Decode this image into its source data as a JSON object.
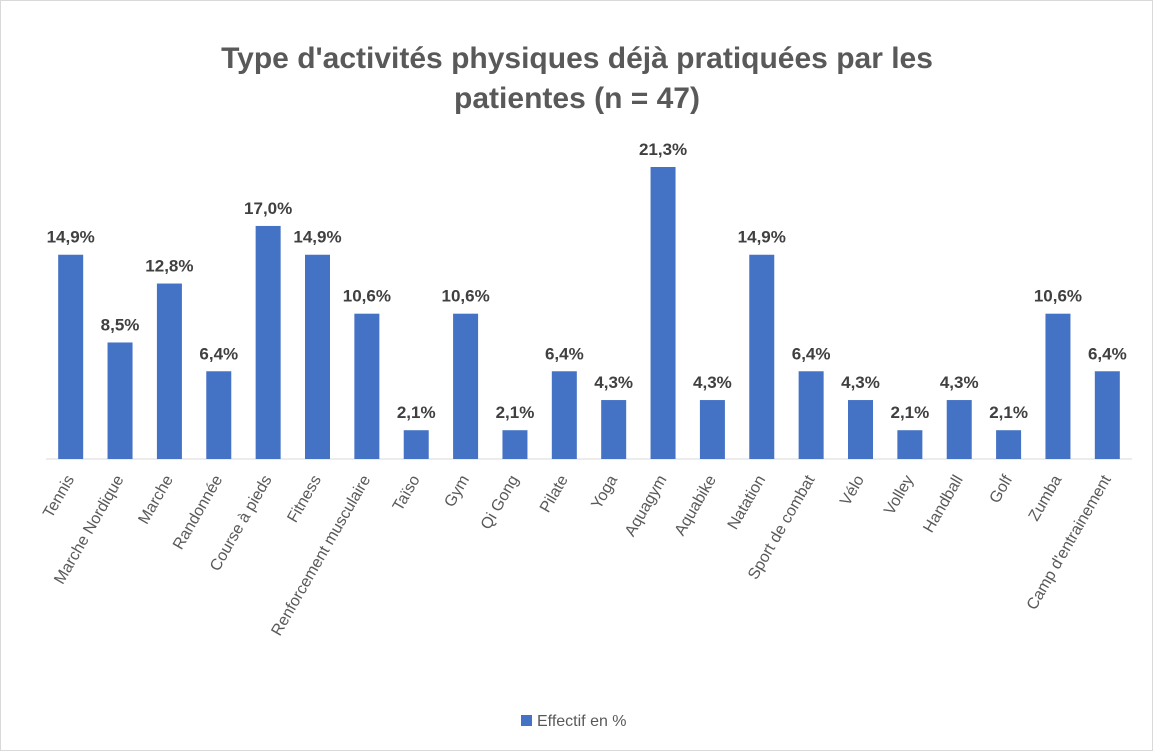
{
  "chart_data": {
    "type": "bar",
    "title": "Type d'activités physiques déjà pratiquées par les patientes (n = 47)",
    "categories": [
      "Tennis",
      "Marche Nordique",
      "Marche",
      "Randonnée",
      "Course à pieds",
      "Fitness",
      "Renforcement musculaire",
      "Taïso",
      "Gym",
      "Qi Gong",
      "Pilate",
      "Yoga",
      "Aquagym",
      "Aquabike",
      "Natation",
      "Sport de combat",
      "Vélo",
      "Volley",
      "Handball",
      "Golf",
      "Zumba",
      "Camp d'entrainement"
    ],
    "series": [
      {
        "name": "Effectif en %",
        "color": "#4472c4",
        "values": [
          14.9,
          8.5,
          12.8,
          6.4,
          17.0,
          14.9,
          10.6,
          2.1,
          10.6,
          2.1,
          6.4,
          4.3,
          21.3,
          4.3,
          14.9,
          6.4,
          4.3,
          2.1,
          4.3,
          2.1,
          10.6,
          6.4
        ],
        "value_labels": [
          "14,9%",
          "8,5%",
          "12,8%",
          "6,4%",
          "17,0%",
          "14,9%",
          "10,6%",
          "2,1%",
          "10,6%",
          "2,1%",
          "6,4%",
          "4,3%",
          "21,3%",
          "4,3%",
          "14,9%",
          "6,4%",
          "4,3%",
          "2,1%",
          "4,3%",
          "2,1%",
          "10,6%",
          "6,4%"
        ]
      }
    ],
    "legend": "bottom"
  }
}
